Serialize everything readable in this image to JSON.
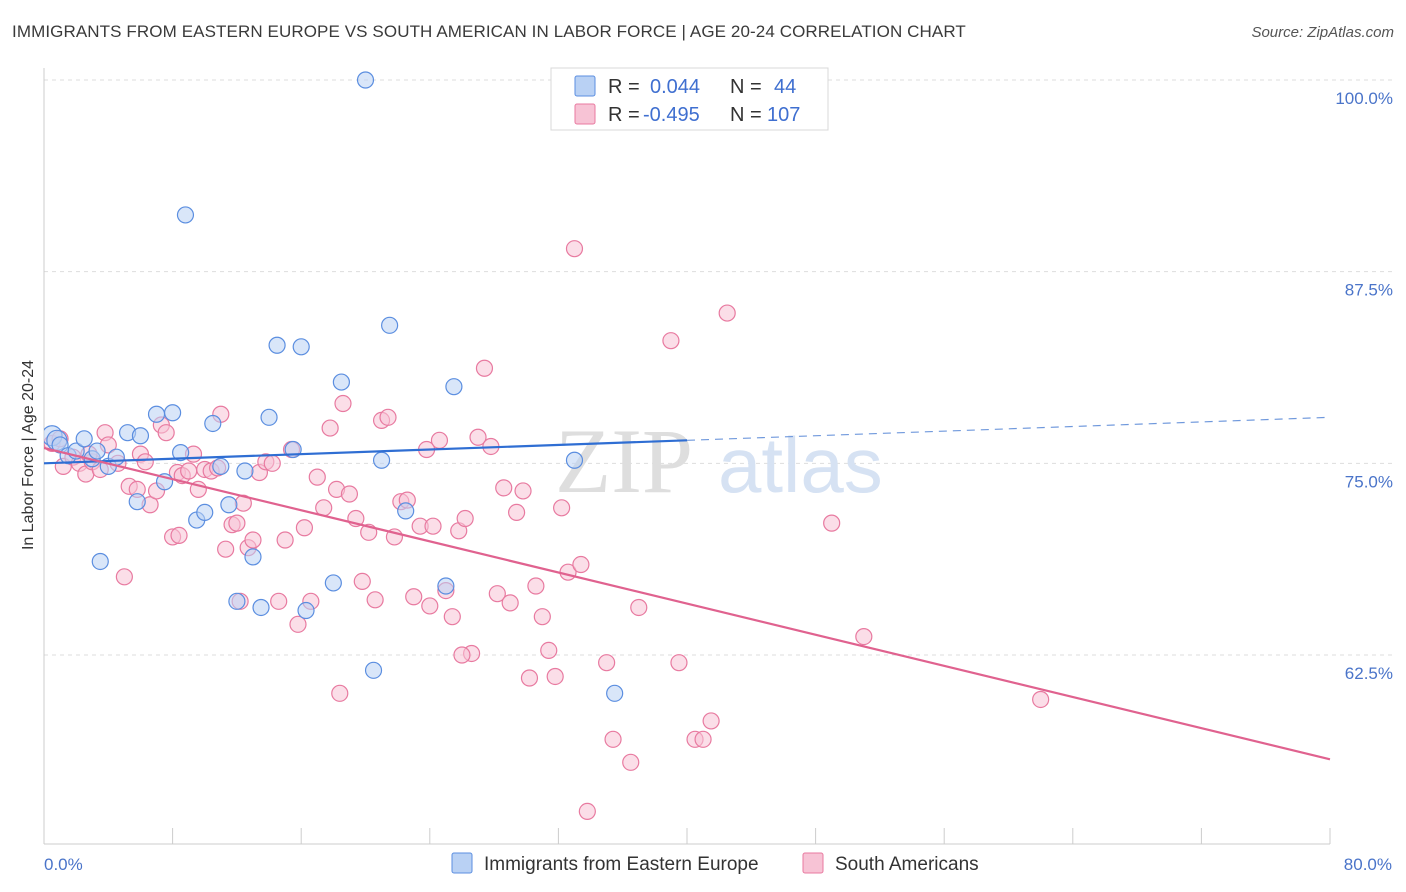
{
  "title": "IMMIGRANTS FROM EASTERN EUROPE VS SOUTH AMERICAN IN LABOR FORCE | AGE 20-24 CORRELATION CHART",
  "source": "Source: ZipAtlas.com",
  "watermark": {
    "zip": "ZIP",
    "atlas": "atlas"
  },
  "colors": {
    "blue": "#5b8ee0",
    "blue_fill": "#b9d1f4",
    "pink": "#e87aa0",
    "pink_fill": "#f7c3d5",
    "axis_text": "#4a74c9",
    "grid": "#dddddd"
  },
  "chart_data": {
    "type": "scatter",
    "xlabel": "",
    "ylabel": "In Labor Force | Age 20-24",
    "xlim": [
      0,
      80
    ],
    "ylim": [
      52,
      101
    ],
    "y_ticks": [
      {
        "value": 100,
        "label": "100.0%"
      },
      {
        "value": 87.5,
        "label": "87.5%"
      },
      {
        "value": 75,
        "label": "75.0%"
      },
      {
        "value": 62.5,
        "label": "62.5%"
      }
    ],
    "x_tick_labels": {
      "min": "0.0%",
      "max": "80.0%"
    },
    "legend": {
      "rows": [
        {
          "r_label": "R =",
          "r_value": "0.044",
          "n_label": "N =",
          "n_value": "44"
        },
        {
          "r_label": "R =",
          "r_value": "-0.495",
          "n_label": "N =",
          "n_value": "107"
        }
      ]
    },
    "series": [
      {
        "name": "Immigrants from Eastern Europe",
        "color": "#5b8ee0",
        "trend": {
          "x0": 0,
          "y0": 75.0,
          "x1": 40,
          "y1": 76.5,
          "dash_x_end": 80,
          "dash_y_end": 78.0
        },
        "points": [
          [
            0.5,
            76.8
          ],
          [
            0.8,
            76.5
          ],
          [
            1.0,
            76.2
          ],
          [
            1.5,
            75.5
          ],
          [
            2.0,
            75.8
          ],
          [
            2.5,
            76.6
          ],
          [
            3.0,
            75.3
          ],
          [
            3.3,
            75.8
          ],
          [
            4.0,
            74.8
          ],
          [
            4.5,
            75.4
          ],
          [
            5.2,
            77.0
          ],
          [
            6.0,
            76.8
          ],
          [
            5.8,
            72.5
          ],
          [
            7.0,
            78.2
          ],
          [
            7.5,
            73.8
          ],
          [
            8.0,
            78.3
          ],
          [
            8.5,
            75.7
          ],
          [
            8.8,
            91.2
          ],
          [
            9.5,
            71.3
          ],
          [
            10.0,
            71.8
          ],
          [
            10.5,
            77.6
          ],
          [
            11.0,
            74.8
          ],
          [
            11.5,
            72.3
          ],
          [
            12.0,
            66.0
          ],
          [
            12.5,
            74.5
          ],
          [
            13.0,
            68.9
          ],
          [
            13.5,
            65.6
          ],
          [
            14.0,
            78.0
          ],
          [
            14.5,
            82.7
          ],
          [
            15.5,
            75.9
          ],
          [
            16.0,
            82.6
          ],
          [
            16.3,
            65.4
          ],
          [
            18.0,
            67.2
          ],
          [
            18.5,
            80.3
          ],
          [
            20.0,
            100.0
          ],
          [
            20.5,
            61.5
          ],
          [
            21.0,
            75.2
          ],
          [
            21.5,
            84.0
          ],
          [
            22.5,
            71.9
          ],
          [
            25.0,
            67.0
          ],
          [
            25.5,
            80.0
          ],
          [
            33.0,
            75.2
          ],
          [
            35.5,
            60.0
          ],
          [
            3.5,
            68.6
          ]
        ]
      },
      {
        "name": "South Americans",
        "color": "#e87aa0",
        "trend": {
          "x0": 0,
          "y0": 76.0,
          "x1": 80,
          "y1": 55.7
        },
        "points": [
          [
            0.5,
            76.3
          ],
          [
            1.0,
            76.6
          ],
          [
            1.2,
            74.8
          ],
          [
            1.8,
            75.4
          ],
          [
            2.2,
            75.0
          ],
          [
            2.6,
            74.3
          ],
          [
            3.0,
            75.1
          ],
          [
            3.5,
            74.6
          ],
          [
            3.8,
            77.0
          ],
          [
            4.0,
            76.2
          ],
          [
            4.6,
            75.0
          ],
          [
            5.0,
            67.6
          ],
          [
            5.3,
            73.5
          ],
          [
            5.8,
            73.3
          ],
          [
            6.0,
            75.6
          ],
          [
            6.3,
            75.1
          ],
          [
            6.6,
            72.3
          ],
          [
            7.0,
            73.2
          ],
          [
            7.3,
            77.5
          ],
          [
            7.6,
            77.0
          ],
          [
            8.0,
            70.2
          ],
          [
            8.3,
            74.4
          ],
          [
            8.6,
            74.2
          ],
          [
            9.0,
            74.5
          ],
          [
            9.3,
            75.6
          ],
          [
            9.6,
            73.3
          ],
          [
            10.0,
            74.6
          ],
          [
            10.4,
            74.5
          ],
          [
            10.8,
            74.7
          ],
          [
            11.0,
            78.2
          ],
          [
            11.3,
            69.4
          ],
          [
            11.7,
            71.0
          ],
          [
            12.0,
            71.1
          ],
          [
            12.4,
            72.4
          ],
          [
            12.7,
            69.5
          ],
          [
            13.0,
            70.0
          ],
          [
            13.4,
            74.4
          ],
          [
            13.8,
            75.1
          ],
          [
            14.2,
            75.0
          ],
          [
            14.6,
            66.0
          ],
          [
            15.0,
            70.0
          ],
          [
            15.4,
            75.9
          ],
          [
            15.8,
            64.5
          ],
          [
            16.2,
            70.8
          ],
          [
            16.6,
            66.0
          ],
          [
            17.0,
            74.1
          ],
          [
            17.4,
            72.1
          ],
          [
            17.8,
            77.3
          ],
          [
            18.2,
            73.3
          ],
          [
            18.6,
            78.9
          ],
          [
            19.0,
            73.0
          ],
          [
            19.4,
            71.4
          ],
          [
            19.8,
            67.3
          ],
          [
            20.2,
            70.5
          ],
          [
            20.6,
            66.1
          ],
          [
            21.0,
            77.8
          ],
          [
            21.4,
            78.0
          ],
          [
            21.8,
            70.2
          ],
          [
            22.2,
            72.5
          ],
          [
            22.6,
            72.6
          ],
          [
            23.0,
            66.3
          ],
          [
            23.4,
            70.9
          ],
          [
            23.8,
            75.9
          ],
          [
            24.2,
            70.9
          ],
          [
            24.6,
            76.5
          ],
          [
            25.0,
            66.7
          ],
          [
            25.4,
            65.0
          ],
          [
            25.8,
            70.6
          ],
          [
            26.2,
            71.4
          ],
          [
            26.6,
            62.6
          ],
          [
            27.0,
            76.7
          ],
          [
            27.4,
            81.2
          ],
          [
            27.8,
            76.1
          ],
          [
            28.2,
            66.5
          ],
          [
            28.6,
            73.4
          ],
          [
            29.0,
            65.9
          ],
          [
            29.4,
            71.8
          ],
          [
            29.8,
            73.2
          ],
          [
            30.2,
            61.0
          ],
          [
            30.6,
            67.0
          ],
          [
            31.0,
            65.0
          ],
          [
            31.4,
            62.8
          ],
          [
            31.8,
            61.1
          ],
          [
            32.2,
            72.1
          ],
          [
            32.6,
            67.9
          ],
          [
            33.0,
            89.0
          ],
          [
            33.4,
            68.4
          ],
          [
            33.8,
            52.3
          ],
          [
            35.0,
            62.0
          ],
          [
            35.4,
            57.0
          ],
          [
            36.5,
            55.5
          ],
          [
            37.0,
            65.6
          ],
          [
            39.0,
            83.0
          ],
          [
            39.5,
            62.0
          ],
          [
            40.5,
            57.0
          ],
          [
            41.0,
            57.0
          ],
          [
            41.5,
            58.2
          ],
          [
            42.5,
            84.8
          ],
          [
            49.0,
            71.1
          ],
          [
            51.0,
            63.7
          ],
          [
            62.0,
            59.6
          ],
          [
            24.0,
            65.7
          ],
          [
            26.0,
            62.5
          ],
          [
            18.4,
            60.0
          ],
          [
            12.2,
            66.0
          ],
          [
            8.4,
            70.3
          ],
          [
            2.8,
            75.6
          ]
        ]
      }
    ]
  }
}
